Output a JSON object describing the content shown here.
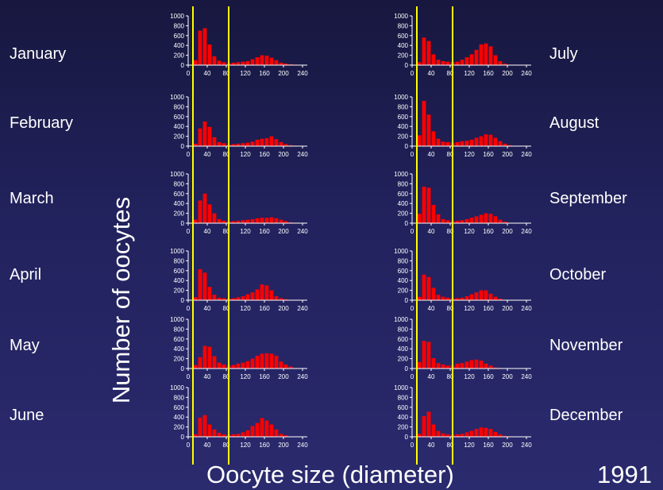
{
  "x_axis_label": "Oocyte size (diameter)",
  "y_axis_label": "Number of oocytes",
  "year": "1991",
  "guide_lines_size": [
    10,
    85
  ],
  "colors": {
    "bar": "#ff0000",
    "guide_line": "#ffff00",
    "axis": "#ffffff",
    "text": "#ffffff"
  },
  "chart_data": {
    "type": "bar",
    "xlim": [
      0,
      250
    ],
    "ylim": [
      0,
      1000
    ],
    "bin_width": 10,
    "x_ticks": [
      0,
      40,
      80,
      120,
      160,
      200,
      240
    ],
    "y_ticks": [
      0,
      200,
      400,
      600,
      800,
      1000
    ],
    "bin_starts": [
      10,
      20,
      30,
      40,
      50,
      60,
      70,
      80,
      90,
      100,
      110,
      120,
      130,
      140,
      150,
      160,
      170,
      180,
      190,
      200,
      210,
      220,
      230
    ],
    "panels": [
      {
        "month": "January",
        "values": [
          100,
          700,
          750,
          420,
          180,
          90,
          60,
          40,
          50,
          60,
          70,
          80,
          120,
          160,
          200,
          190,
          150,
          100,
          50,
          30,
          20,
          10,
          0
        ]
      },
      {
        "month": "February",
        "values": [
          50,
          360,
          500,
          390,
          180,
          80,
          60,
          30,
          40,
          50,
          60,
          70,
          90,
          130,
          150,
          160,
          200,
          140,
          80,
          40,
          20,
          10,
          0
        ]
      },
      {
        "month": "March",
        "values": [
          70,
          460,
          600,
          380,
          200,
          80,
          50,
          40,
          40,
          50,
          60,
          70,
          80,
          100,
          110,
          110,
          120,
          100,
          70,
          40,
          20,
          10,
          0
        ]
      },
      {
        "month": "April",
        "values": [
          60,
          630,
          560,
          270,
          110,
          50,
          40,
          30,
          40,
          60,
          80,
          120,
          160,
          220,
          320,
          300,
          200,
          80,
          40,
          20,
          10,
          0,
          0
        ]
      },
      {
        "month": "May",
        "values": [
          70,
          230,
          460,
          440,
          250,
          120,
          80,
          60,
          70,
          100,
          120,
          150,
          200,
          260,
          300,
          310,
          300,
          260,
          140,
          80,
          40,
          10,
          0
        ]
      },
      {
        "month": "June",
        "values": [
          50,
          390,
          440,
          250,
          150,
          80,
          50,
          40,
          50,
          60,
          90,
          130,
          220,
          280,
          380,
          330,
          250,
          150,
          60,
          30,
          10,
          0,
          0
        ]
      },
      {
        "month": "July",
        "values": [
          60,
          560,
          490,
          220,
          110,
          80,
          70,
          60,
          70,
          110,
          160,
          220,
          310,
          420,
          440,
          380,
          200,
          80,
          30,
          10,
          0,
          0,
          0
        ]
      },
      {
        "month": "August",
        "values": [
          220,
          920,
          640,
          300,
          150,
          90,
          80,
          70,
          80,
          100,
          110,
          130,
          170,
          200,
          240,
          230,
          170,
          100,
          50,
          20,
          10,
          0,
          0
        ]
      },
      {
        "month": "September",
        "values": [
          190,
          740,
          720,
          370,
          180,
          80,
          60,
          40,
          50,
          60,
          80,
          110,
          140,
          170,
          200,
          190,
          140,
          70,
          30,
          10,
          0,
          0,
          0
        ]
      },
      {
        "month": "October",
        "values": [
          70,
          520,
          470,
          250,
          110,
          70,
          50,
          40,
          40,
          50,
          80,
          120,
          160,
          200,
          200,
          130,
          70,
          30,
          10,
          0,
          0,
          0,
          0
        ]
      },
      {
        "month": "November",
        "values": [
          130,
          560,
          540,
          210,
          110,
          80,
          60,
          60,
          100,
          110,
          140,
          170,
          180,
          160,
          100,
          60,
          20,
          10,
          0,
          0,
          0,
          0,
          0
        ]
      },
      {
        "month": "December",
        "values": [
          60,
          420,
          510,
          250,
          120,
          70,
          50,
          40,
          50,
          60,
          90,
          120,
          160,
          190,
          180,
          160,
          100,
          50,
          20,
          10,
          0,
          0,
          0
        ]
      }
    ]
  }
}
